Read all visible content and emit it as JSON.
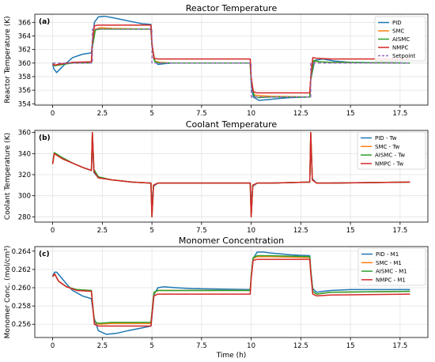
{
  "chart_data": [
    {
      "type": "line",
      "panel_label": "(a)",
      "title": "Reactor Temperature",
      "xlabel": "",
      "ylabel": "Reactor Temperature (K)",
      "xlim": [
        -0.9,
        18.9
      ],
      "ylim": [
        353.8,
        367.2
      ],
      "xticks": [
        0.0,
        2.5,
        5.0,
        7.5,
        10.0,
        12.5,
        15.0,
        17.5
      ],
      "yticks": [
        354,
        356,
        358,
        360,
        362,
        364,
        366
      ],
      "grid": true,
      "legend": "top-right",
      "series": [
        {
          "name": "PID",
          "color": "#1f77b4",
          "style": "solid",
          "x": [
            0,
            0.05,
            0.2,
            0.5,
            1.0,
            1.5,
            1.95,
            2.0,
            2.1,
            2.3,
            2.6,
            3.0,
            3.5,
            4.0,
            4.5,
            4.95,
            5.0,
            5.1,
            5.3,
            5.6,
            6.0,
            7.0,
            9.95,
            10.0,
            10.1,
            10.4,
            10.8,
            11.5,
            12.0,
            12.95,
            13.0,
            13.2,
            13.6,
            14.2,
            15,
            18
          ],
          "y": [
            360.0,
            359.2,
            358.6,
            359.5,
            360.8,
            361.3,
            361.5,
            363.0,
            366.0,
            366.8,
            366.9,
            366.7,
            366.4,
            366.1,
            365.8,
            365.7,
            363.0,
            360.5,
            359.8,
            359.9,
            360.0,
            360.0,
            360.0,
            357.0,
            355.0,
            354.5,
            354.6,
            354.8,
            354.9,
            355.0,
            357.5,
            360.4,
            360.6,
            360.3,
            360.1,
            360.0
          ]
        },
        {
          "name": "SMC",
          "color": "#ff7f0e",
          "style": "solid",
          "x": [
            0,
            0.1,
            0.5,
            1.0,
            1.95,
            2.0,
            2.15,
            2.4,
            3.0,
            4.95,
            5.0,
            5.15,
            5.4,
            6,
            9.95,
            10.0,
            10.15,
            10.4,
            11,
            12.95,
            13.0,
            13.15,
            13.4,
            14,
            18
          ],
          "y": [
            360.0,
            359.7,
            359.9,
            360.0,
            360.0,
            362.5,
            365.0,
            365.2,
            365.1,
            365.0,
            362.5,
            360.3,
            360.1,
            360.0,
            360.0,
            357.5,
            355.3,
            355.2,
            355.1,
            355.0,
            357.5,
            360.3,
            360.2,
            360.1,
            360.0
          ]
        },
        {
          "name": "AISMC",
          "color": "#2ca02c",
          "style": "solid",
          "x": [
            0,
            0.1,
            0.5,
            1.0,
            1.95,
            2.0,
            2.15,
            2.4,
            3.0,
            4.95,
            5.0,
            5.15,
            5.4,
            6,
            9.95,
            10.0,
            10.15,
            10.4,
            11,
            12.95,
            13.0,
            13.15,
            13.4,
            14,
            18
          ],
          "y": [
            360.0,
            359.6,
            359.8,
            360.0,
            360.0,
            362.3,
            364.9,
            365.0,
            365.0,
            365.0,
            362.6,
            360.2,
            360.0,
            360.0,
            360.0,
            357.4,
            355.1,
            354.9,
            355.0,
            355.0,
            357.6,
            360.4,
            360.2,
            360.1,
            360.0
          ]
        },
        {
          "name": "NMPC",
          "color": "#d62728",
          "style": "solid",
          "x": [
            0,
            0.1,
            0.5,
            1.0,
            1.95,
            2.0,
            2.1,
            2.3,
            3.0,
            4.95,
            5.0,
            5.1,
            5.3,
            6,
            9.95,
            10.0,
            10.1,
            10.3,
            11,
            12.95,
            13.0,
            13.1,
            13.3,
            14,
            18
          ],
          "y": [
            359.8,
            359.7,
            359.9,
            360.1,
            360.2,
            363.0,
            365.5,
            365.6,
            365.6,
            365.6,
            363.0,
            360.7,
            360.6,
            360.6,
            360.6,
            358.0,
            355.8,
            355.6,
            355.6,
            355.6,
            358.0,
            360.8,
            360.7,
            360.6,
            360.6
          ]
        },
        {
          "name": "Setpoint",
          "color": "#9467bd",
          "style": "dashed",
          "x": [
            0,
            2,
            2,
            5,
            5,
            10,
            10,
            13,
            13,
            18
          ],
          "y": [
            360,
            360,
            365,
            365,
            360,
            360,
            355,
            355,
            360,
            360
          ]
        }
      ]
    },
    {
      "type": "line",
      "panel_label": "(b)",
      "title": "Coolant Temperature",
      "xlabel": "",
      "ylabel": "Coolant Temperature (K)",
      "xlim": [
        -0.9,
        18.9
      ],
      "ylim": [
        275,
        362
      ],
      "xticks": [
        0.0,
        2.5,
        5.0,
        7.5,
        10.0,
        12.5,
        15.0,
        17.5
      ],
      "yticks": [
        280,
        300,
        320,
        340,
        360
      ],
      "grid": true,
      "legend": "top-right",
      "series": [
        {
          "name": "PID - Tw",
          "color": "#1f77b4",
          "style": "solid",
          "x": [
            0,
            0.08,
            0.5,
            1.0,
            1.5,
            1.95,
            2.0,
            2.08,
            2.3,
            3.0,
            4.0,
            4.95,
            5.0,
            5.08,
            5.3,
            6,
            9.95,
            10.0,
            10.08,
            10.3,
            11,
            12.95,
            13.0,
            13.08,
            13.3,
            14,
            18
          ],
          "y": [
            331,
            340,
            336,
            331,
            327,
            324,
            352,
            322,
            317,
            315,
            313,
            312,
            292,
            309,
            312,
            312,
            312,
            292,
            309,
            312,
            312,
            313,
            352,
            316,
            312,
            312,
            313
          ]
        },
        {
          "name": "SMC - Tw",
          "color": "#ff7f0e",
          "style": "solid",
          "x": [
            0,
            0.08,
            0.5,
            1.0,
            1.5,
            1.95,
            2.0,
            2.08,
            2.3,
            3.0,
            4.0,
            4.95,
            5.0,
            5.08,
            5.3,
            6,
            9.95,
            10.0,
            10.08,
            10.3,
            11,
            12.95,
            13.0,
            13.08,
            13.3,
            14,
            18
          ],
          "y": [
            330,
            340,
            335,
            331,
            327,
            324,
            360,
            324,
            317,
            315,
            313,
            312,
            280,
            310,
            312,
            312,
            312,
            280,
            310,
            312,
            312,
            313,
            360,
            315,
            312,
            312,
            313
          ]
        },
        {
          "name": "AISMC - Tw",
          "color": "#2ca02c",
          "style": "solid",
          "x": [
            0,
            0.08,
            0.5,
            1.0,
            1.5,
            1.95,
            2.0,
            2.08,
            2.3,
            3.0,
            4.0,
            4.95,
            5.0,
            5.08,
            5.3,
            6,
            9.95,
            10.0,
            10.08,
            10.3,
            11,
            12.95,
            13.0,
            13.08,
            13.3,
            14,
            18
          ],
          "y": [
            331,
            341,
            336,
            331,
            327,
            324,
            360,
            325,
            318,
            315,
            313,
            312,
            280,
            310,
            312,
            312,
            312,
            280,
            310,
            312,
            312,
            313,
            360,
            315,
            312,
            312,
            313
          ]
        },
        {
          "name": "NMPC - Tw",
          "color": "#d62728",
          "style": "solid",
          "x": [
            0,
            0.08,
            0.5,
            1.0,
            1.5,
            1.95,
            2.0,
            2.08,
            2.3,
            3.0,
            4.0,
            4.95,
            5.0,
            5.08,
            5.3,
            6,
            9.95,
            10.0,
            10.08,
            10.3,
            11,
            12.95,
            13.0,
            13.08,
            13.3,
            14,
            18
          ],
          "y": [
            330,
            340,
            335,
            331,
            327,
            324,
            360,
            323,
            317,
            315,
            313,
            312,
            280,
            310,
            312,
            312,
            312,
            280,
            310,
            312,
            312,
            313,
            360,
            315,
            312,
            312,
            313
          ]
        }
      ]
    },
    {
      "type": "line",
      "panel_label": "(c)",
      "title": "Monomer Concentration",
      "xlabel": "Time (h)",
      "ylabel": "Monomer Conc. (mol/cm³)",
      "xlim": [
        -0.9,
        18.9
      ],
      "ylim": [
        0.25455,
        0.2645
      ],
      "xticks": [
        0.0,
        2.5,
        5.0,
        7.5,
        10.0,
        12.5,
        15.0,
        17.5
      ],
      "yticks": [
        0.256,
        0.258,
        0.26,
        0.262,
        0.264
      ],
      "ytick_labels": [
        "0.256",
        "0.258",
        "0.260",
        "0.262",
        "0.264"
      ],
      "grid": true,
      "legend": "top-right",
      "series": [
        {
          "name": "PID - M1",
          "color": "#1f77b4",
          "style": "solid",
          "x": [
            0,
            0.1,
            0.2,
            0.4,
            0.7,
            1.0,
            1.5,
            1.95,
            2.0,
            2.1,
            2.3,
            2.7,
            3.2,
            3.8,
            4.5,
            4.95,
            5.0,
            5.1,
            5.3,
            5.6,
            6.2,
            7,
            9.95,
            10.0,
            10.1,
            10.3,
            10.6,
            11,
            12,
            12.95,
            13.0,
            13.1,
            13.3,
            13.6,
            14,
            15,
            18
          ],
          "y": [
            0.2613,
            0.2617,
            0.2617,
            0.2612,
            0.2604,
            0.2597,
            0.2591,
            0.2588,
            0.258,
            0.2566,
            0.2553,
            0.2549,
            0.255,
            0.2553,
            0.2556,
            0.2558,
            0.2568,
            0.2592,
            0.26,
            0.2601,
            0.26,
            0.2599,
            0.2598,
            0.2612,
            0.2632,
            0.2639,
            0.2639,
            0.2638,
            0.2636,
            0.2635,
            0.262,
            0.2599,
            0.2595,
            0.2596,
            0.2597,
            0.2598,
            0.2598
          ]
        },
        {
          "name": "SMC - M1",
          "color": "#ff7f0e",
          "style": "solid",
          "x": [
            0,
            0.1,
            0.3,
            0.7,
            1.2,
            1.95,
            2.0,
            2.1,
            2.3,
            3.0,
            4.95,
            5.0,
            5.1,
            5.3,
            6,
            9.95,
            10.0,
            10.1,
            10.3,
            11,
            12.95,
            13.0,
            13.1,
            13.3,
            14,
            18
          ],
          "y": [
            0.2612,
            0.2615,
            0.2607,
            0.2601,
            0.2598,
            0.2597,
            0.2585,
            0.2563,
            0.256,
            0.2561,
            0.2561,
            0.2572,
            0.2594,
            0.2597,
            0.2597,
            0.2597,
            0.2612,
            0.2632,
            0.2634,
            0.2634,
            0.2633,
            0.2618,
            0.2596,
            0.2593,
            0.2595,
            0.2596
          ]
        },
        {
          "name": "AISMC - M1",
          "color": "#2ca02c",
          "style": "solid",
          "x": [
            0,
            0.1,
            0.3,
            0.7,
            1.2,
            1.95,
            2.0,
            2.1,
            2.3,
            3.0,
            4.95,
            5.0,
            5.1,
            5.3,
            6,
            9.95,
            10.0,
            10.1,
            10.3,
            11,
            12.95,
            13.0,
            13.1,
            13.3,
            14,
            18
          ],
          "y": [
            0.2612,
            0.2615,
            0.2607,
            0.2601,
            0.2598,
            0.2597,
            0.2585,
            0.2563,
            0.2561,
            0.2562,
            0.2562,
            0.2573,
            0.2595,
            0.2597,
            0.2597,
            0.2597,
            0.2613,
            0.2633,
            0.2635,
            0.2635,
            0.2634,
            0.2619,
            0.2596,
            0.2593,
            0.2595,
            0.2596
          ]
        },
        {
          "name": "NMPC - M1",
          "color": "#d62728",
          "style": "solid",
          "x": [
            0,
            0.1,
            0.3,
            0.7,
            1.2,
            1.95,
            2.0,
            2.1,
            2.3,
            3.0,
            4.95,
            5.0,
            5.1,
            5.3,
            6,
            9.95,
            10.0,
            10.1,
            10.3,
            11,
            12.95,
            13.0,
            13.1,
            13.3,
            14,
            18
          ],
          "y": [
            0.2612,
            0.2615,
            0.2607,
            0.2601,
            0.2597,
            0.2596,
            0.2584,
            0.256,
            0.2558,
            0.2558,
            0.2558,
            0.257,
            0.2591,
            0.2593,
            0.2593,
            0.2593,
            0.261,
            0.263,
            0.2631,
            0.2631,
            0.2631,
            0.2616,
            0.2593,
            0.2591,
            0.2592,
            0.2593
          ]
        }
      ]
    }
  ]
}
